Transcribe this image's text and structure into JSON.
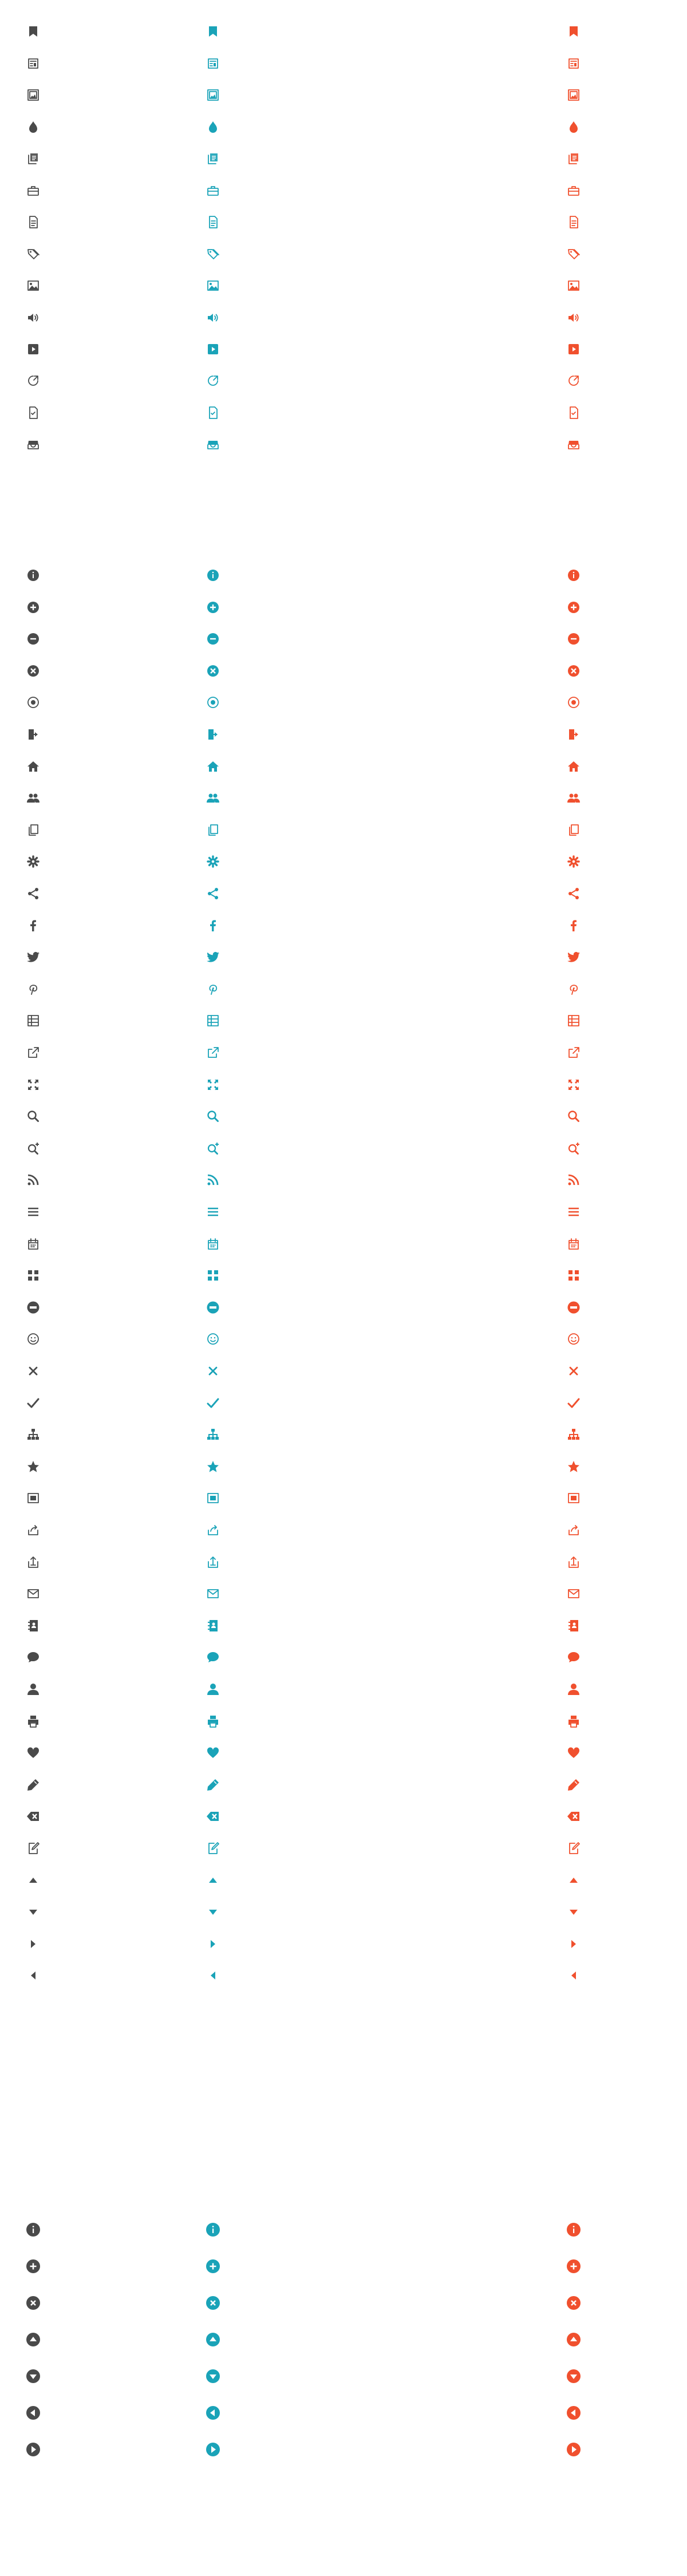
{
  "colors": {
    "dark": "#4a4a4a",
    "teal": "#1aa3b8",
    "red": "#f0502e"
  },
  "sections": [
    {
      "name": "media-icons",
      "icons": [
        "bookmark-icon",
        "newspaper-icon",
        "image-frame-icon",
        "drop-icon",
        "documents-stack-icon",
        "briefcase-icon",
        "document-icon",
        "tags-icon",
        "picture-icon",
        "volume-icon",
        "play-box-icon",
        "badge-icon",
        "file-check-icon",
        "inbox-tray-icon"
      ]
    },
    {
      "name": "ui-icons",
      "icons": [
        "info-circle-icon",
        "plus-circle-icon",
        "minus-circle-icon",
        "close-circle-icon",
        "target-icon",
        "sign-in-icon",
        "home-icon",
        "users-icon",
        "copy-icon",
        "gear-icon",
        "share-icon",
        "facebook-icon",
        "twitter-icon",
        "pinterest-icon",
        "grid-list-icon",
        "external-link-icon",
        "fullscreen-icon",
        "search-icon",
        "zoom-in-icon",
        "rss-icon",
        "menu-icon",
        "calendar-icon",
        "apps-icon",
        "minus-filled-circle-icon",
        "smile-icon",
        "close-icon",
        "check-icon",
        "sitemap-icon",
        "star-icon",
        "window-icon",
        "reply-icon",
        "upload-box-icon",
        "mail-icon",
        "contact-book-icon",
        "chat-bubble-icon",
        "user-icon",
        "printer-icon",
        "heart-icon",
        "pencil-icon",
        "backspace-icon",
        "edit-icon",
        "caret-up-icon",
        "caret-down-icon",
        "caret-right-icon",
        "caret-left-icon"
      ]
    },
    {
      "name": "circle-icons",
      "icons": [
        "info-round-icon",
        "plus-round-icon",
        "close-round-icon",
        "arrow-up-round-icon",
        "arrow-down-round-icon",
        "arrow-left-round-icon",
        "arrow-right-round-icon"
      ]
    }
  ]
}
